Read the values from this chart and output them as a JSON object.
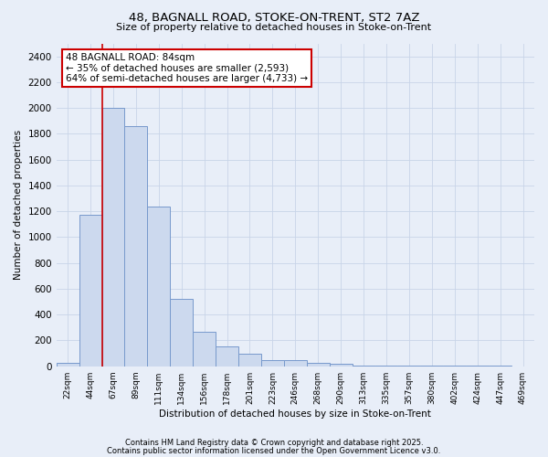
{
  "title1": "48, BAGNALL ROAD, STOKE-ON-TRENT, ST2 7AZ",
  "title2": "Size of property relative to detached houses in Stoke-on-Trent",
  "xlabel": "Distribution of detached houses by size in Stoke-on-Trent",
  "ylabel": "Number of detached properties",
  "bar_color": "#ccd9ee",
  "bar_edge_color": "#7799cc",
  "bins": [
    "22sqm",
    "44sqm",
    "67sqm",
    "89sqm",
    "111sqm",
    "134sqm",
    "156sqm",
    "178sqm",
    "201sqm",
    "223sqm",
    "246sqm",
    "268sqm",
    "290sqm",
    "313sqm",
    "335sqm",
    "357sqm",
    "380sqm",
    "402sqm",
    "424sqm",
    "447sqm",
    "469sqm"
  ],
  "values": [
    25,
    1170,
    2000,
    1860,
    1240,
    520,
    270,
    155,
    95,
    45,
    45,
    25,
    18,
    5,
    2,
    2,
    2,
    2,
    2,
    2,
    0
  ],
  "ylim": [
    0,
    2500
  ],
  "yticks": [
    0,
    200,
    400,
    600,
    800,
    1000,
    1200,
    1400,
    1600,
    1800,
    2000,
    2200,
    2400
  ],
  "vline_bin_index": 2,
  "annotation_text": "48 BAGNALL ROAD: 84sqm\n← 35% of detached houses are smaller (2,593)\n64% of semi-detached houses are larger (4,733) →",
  "annotation_box_color": "#ffffff",
  "annotation_box_edge": "#cc0000",
  "vline_color": "#cc0000",
  "footer1": "Contains HM Land Registry data © Crown copyright and database right 2025.",
  "footer2": "Contains public sector information licensed under the Open Government Licence v3.0.",
  "bg_color": "#e8eef8",
  "plot_bg_color": "#e8eef8",
  "grid_color": "#c8d4e8"
}
